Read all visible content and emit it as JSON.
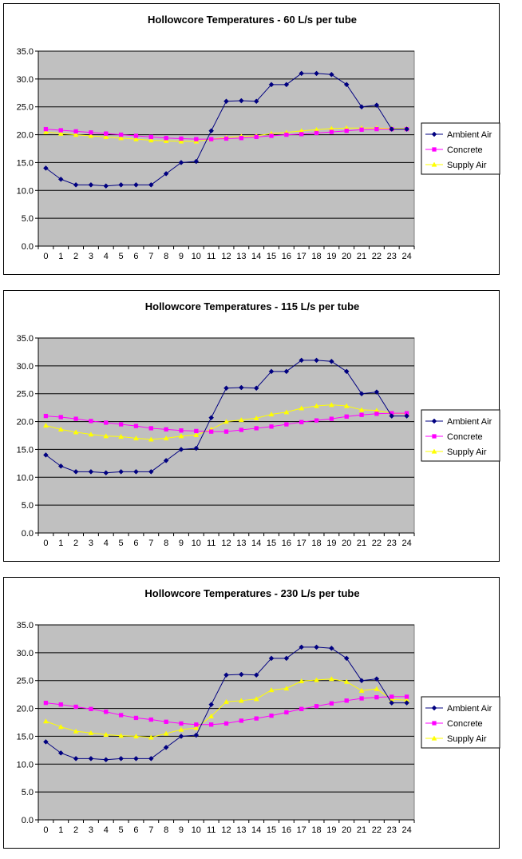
{
  "chart_data": [
    {
      "type": "line",
      "title": "Hollowcore Temperatures - 60 L/s per tube",
      "xlabel": "",
      "ylabel": "",
      "x": [
        0,
        1,
        2,
        3,
        4,
        5,
        6,
        7,
        8,
        9,
        10,
        11,
        12,
        13,
        14,
        15,
        16,
        17,
        18,
        19,
        20,
        21,
        22,
        23,
        24
      ],
      "ylim": [
        0,
        35
      ],
      "yticks": [
        "0.0",
        "5.0",
        "10.0",
        "15.0",
        "20.0",
        "25.0",
        "30.0",
        "35.0"
      ],
      "grid": "horizontal",
      "legend_position": "right",
      "series": [
        {
          "name": "Ambient Air",
          "color": "#000080",
          "marker": "diamond",
          "values": [
            14.0,
            12.0,
            11.0,
            11.0,
            10.8,
            11.0,
            11.0,
            11.0,
            13.0,
            15.0,
            15.2,
            20.7,
            26.0,
            26.1,
            26.0,
            29.0,
            29.0,
            31.0,
            31.0,
            30.8,
            29.0,
            25.0,
            25.3,
            21.0,
            21.0
          ]
        },
        {
          "name": "Concrete",
          "color": "#FF00FF",
          "marker": "square",
          "values": [
            21.0,
            20.8,
            20.6,
            20.4,
            20.2,
            20.0,
            19.8,
            19.6,
            19.4,
            19.3,
            19.2,
            19.2,
            19.3,
            19.4,
            19.6,
            19.8,
            20.0,
            20.1,
            20.3,
            20.5,
            20.7,
            20.9,
            21.0,
            21.0,
            21.0
          ]
        },
        {
          "name": "Supply Air",
          "color": "#FFFF00",
          "marker": "triangle",
          "values": [
            20.5,
            20.2,
            20.0,
            19.8,
            19.6,
            19.4,
            19.2,
            19.0,
            18.9,
            18.8,
            18.8,
            19.2,
            19.5,
            19.7,
            19.8,
            20.2,
            20.4,
            20.7,
            20.9,
            21.1,
            21.2,
            21.2,
            21.2,
            21.1,
            21.1
          ]
        }
      ]
    },
    {
      "type": "line",
      "title": "Hollowcore Temperatures - 115 L/s per tube",
      "xlabel": "",
      "ylabel": "",
      "x": [
        0,
        1,
        2,
        3,
        4,
        5,
        6,
        7,
        8,
        9,
        10,
        11,
        12,
        13,
        14,
        15,
        16,
        17,
        18,
        19,
        20,
        21,
        22,
        23,
        24
      ],
      "ylim": [
        0,
        35
      ],
      "yticks": [
        "0.0",
        "5.0",
        "10.0",
        "15.0",
        "20.0",
        "25.0",
        "30.0",
        "35.0"
      ],
      "grid": "horizontal",
      "legend_position": "right",
      "series": [
        {
          "name": "Ambient Air",
          "color": "#000080",
          "marker": "diamond",
          "values": [
            14.0,
            12.0,
            11.0,
            11.0,
            10.8,
            11.0,
            11.0,
            11.0,
            13.0,
            15.0,
            15.2,
            20.7,
            26.0,
            26.1,
            26.0,
            29.0,
            29.0,
            31.0,
            31.0,
            30.8,
            29.0,
            25.0,
            25.3,
            21.0,
            21.0
          ]
        },
        {
          "name": "Concrete",
          "color": "#FF00FF",
          "marker": "square",
          "values": [
            21.0,
            20.8,
            20.5,
            20.1,
            19.8,
            19.5,
            19.2,
            18.8,
            18.6,
            18.4,
            18.3,
            18.2,
            18.2,
            18.5,
            18.8,
            19.1,
            19.5,
            19.9,
            20.2,
            20.5,
            20.9,
            21.2,
            21.4,
            21.5,
            21.5
          ]
        },
        {
          "name": "Supply Air",
          "color": "#FFFF00",
          "marker": "triangle",
          "values": [
            19.3,
            18.6,
            18.1,
            17.7,
            17.4,
            17.3,
            17.0,
            16.8,
            17.0,
            17.4,
            17.6,
            18.6,
            20.0,
            20.3,
            20.6,
            21.3,
            21.7,
            22.4,
            22.8,
            23.0,
            22.8,
            22.1,
            22.0,
            21.5,
            21.4
          ]
        }
      ]
    },
    {
      "type": "line",
      "title": "Hollowcore Temperatures - 230 L/s per tube",
      "xlabel": "",
      "ylabel": "",
      "x": [
        0,
        1,
        2,
        3,
        4,
        5,
        6,
        7,
        8,
        9,
        10,
        11,
        12,
        13,
        14,
        15,
        16,
        17,
        18,
        19,
        20,
        21,
        22,
        23,
        24
      ],
      "ylim": [
        0,
        35
      ],
      "yticks": [
        "0.0",
        "5.0",
        "10.0",
        "15.0",
        "20.0",
        "25.0",
        "30.0",
        "35.0"
      ],
      "grid": "horizontal",
      "legend_position": "right",
      "series": [
        {
          "name": "Ambient Air",
          "color": "#000080",
          "marker": "diamond",
          "values": [
            14.0,
            12.0,
            11.0,
            11.0,
            10.8,
            11.0,
            11.0,
            11.0,
            13.0,
            15.0,
            15.2,
            20.7,
            26.0,
            26.1,
            26.0,
            29.0,
            29.0,
            31.0,
            31.0,
            30.8,
            29.0,
            25.0,
            25.3,
            21.0,
            21.0
          ]
        },
        {
          "name": "Concrete",
          "color": "#FF00FF",
          "marker": "square",
          "values": [
            21.0,
            20.7,
            20.3,
            19.9,
            19.4,
            18.8,
            18.3,
            18.0,
            17.6,
            17.3,
            17.1,
            17.1,
            17.3,
            17.8,
            18.2,
            18.7,
            19.3,
            19.9,
            20.4,
            20.9,
            21.4,
            21.8,
            22.0,
            22.1,
            22.1
          ]
        },
        {
          "name": "Supply Air",
          "color": "#FFFF00",
          "marker": "triangle",
          "values": [
            17.7,
            16.7,
            15.9,
            15.6,
            15.3,
            15.1,
            15.0,
            14.8,
            15.5,
            16.2,
            16.5,
            18.6,
            21.2,
            21.4,
            21.7,
            23.3,
            23.6,
            24.9,
            25.1,
            25.3,
            24.8,
            23.2,
            23.5,
            21.6,
            21.5
          ]
        }
      ]
    }
  ]
}
